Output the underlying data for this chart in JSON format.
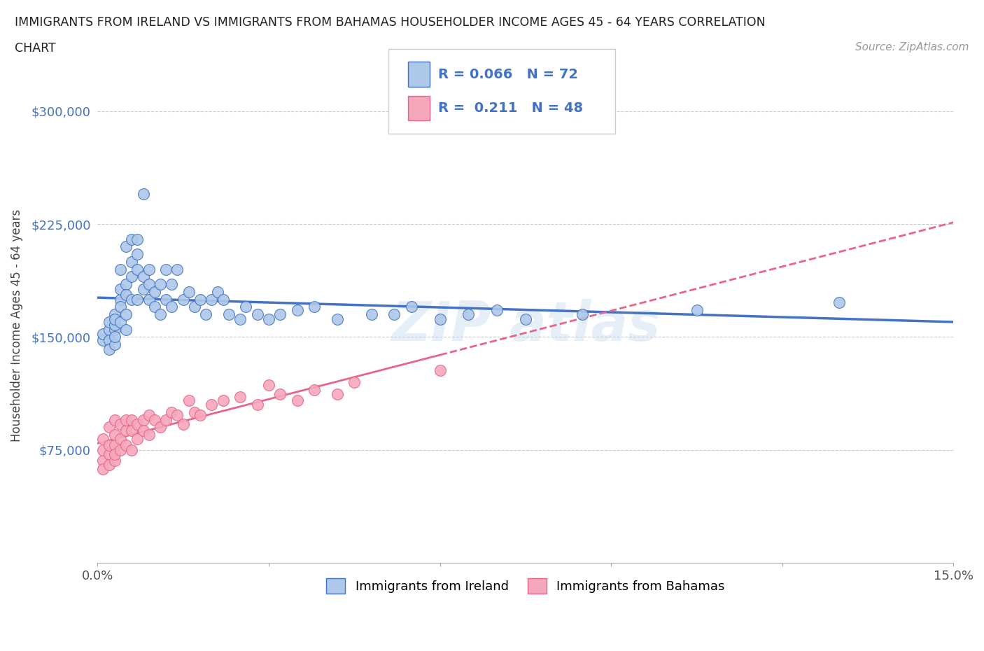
{
  "title_line1": "IMMIGRANTS FROM IRELAND VS IMMIGRANTS FROM BAHAMAS HOUSEHOLDER INCOME AGES 45 - 64 YEARS CORRELATION",
  "title_line2": "CHART",
  "source_text": "Source: ZipAtlas.com",
  "ylabel": "Householder Income Ages 45 - 64 years",
  "xlim": [
    0.0,
    0.15
  ],
  "ylim": [
    0,
    315000
  ],
  "yticks": [
    75000,
    150000,
    225000,
    300000
  ],
  "ytick_labels": [
    "$75,000",
    "$150,000",
    "$225,000",
    "$300,000"
  ],
  "xticks": [
    0.0,
    0.03,
    0.06,
    0.09,
    0.12,
    0.15
  ],
  "xtick_labels": [
    "0.0%",
    "",
    "",
    "",
    "",
    "15.0%"
  ],
  "ireland_R": 0.066,
  "ireland_N": 72,
  "bahamas_R": 0.211,
  "bahamas_N": 48,
  "ireland_color": "#adc8e8",
  "bahamas_color": "#f5a8bc",
  "ireland_line_color": "#4472c4",
  "bahamas_line_color": "#e8648a",
  "background_color": "#ffffff",
  "ireland_x": [
    0.001,
    0.001,
    0.002,
    0.002,
    0.002,
    0.002,
    0.003,
    0.003,
    0.003,
    0.003,
    0.003,
    0.003,
    0.004,
    0.004,
    0.004,
    0.004,
    0.004,
    0.005,
    0.005,
    0.005,
    0.005,
    0.005,
    0.006,
    0.006,
    0.006,
    0.006,
    0.007,
    0.007,
    0.007,
    0.007,
    0.008,
    0.008,
    0.008,
    0.009,
    0.009,
    0.009,
    0.01,
    0.01,
    0.011,
    0.011,
    0.012,
    0.012,
    0.013,
    0.013,
    0.014,
    0.015,
    0.016,
    0.017,
    0.018,
    0.019,
    0.02,
    0.021,
    0.022,
    0.023,
    0.025,
    0.026,
    0.028,
    0.03,
    0.032,
    0.035,
    0.038,
    0.042,
    0.048,
    0.052,
    0.055,
    0.06,
    0.065,
    0.07,
    0.075,
    0.085,
    0.105,
    0.13
  ],
  "ireland_y": [
    148000,
    152000,
    155000,
    160000,
    148000,
    142000,
    165000,
    155000,
    145000,
    158000,
    150000,
    162000,
    175000,
    170000,
    182000,
    195000,
    160000,
    185000,
    178000,
    165000,
    210000,
    155000,
    200000,
    190000,
    175000,
    215000,
    205000,
    195000,
    175000,
    215000,
    245000,
    182000,
    190000,
    175000,
    195000,
    185000,
    170000,
    180000,
    185000,
    165000,
    195000,
    175000,
    185000,
    170000,
    195000,
    175000,
    180000,
    170000,
    175000,
    165000,
    175000,
    180000,
    175000,
    165000,
    162000,
    170000,
    165000,
    162000,
    165000,
    168000,
    170000,
    162000,
    165000,
    165000,
    170000,
    162000,
    165000,
    168000,
    162000,
    165000,
    168000,
    173000
  ],
  "bahamas_x": [
    0.001,
    0.001,
    0.001,
    0.001,
    0.002,
    0.002,
    0.002,
    0.002,
    0.003,
    0.003,
    0.003,
    0.003,
    0.003,
    0.004,
    0.004,
    0.004,
    0.005,
    0.005,
    0.005,
    0.006,
    0.006,
    0.006,
    0.007,
    0.007,
    0.008,
    0.008,
    0.009,
    0.009,
    0.01,
    0.011,
    0.012,
    0.013,
    0.014,
    0.015,
    0.016,
    0.017,
    0.018,
    0.02,
    0.022,
    0.025,
    0.028,
    0.03,
    0.032,
    0.035,
    0.038,
    0.042,
    0.045,
    0.06
  ],
  "bahamas_y": [
    82000,
    68000,
    75000,
    62000,
    90000,
    72000,
    78000,
    65000,
    95000,
    78000,
    85000,
    68000,
    72000,
    92000,
    82000,
    75000,
    88000,
    95000,
    78000,
    95000,
    88000,
    75000,
    92000,
    82000,
    95000,
    88000,
    98000,
    85000,
    95000,
    90000,
    95000,
    100000,
    98000,
    92000,
    108000,
    100000,
    98000,
    105000,
    108000,
    110000,
    105000,
    118000,
    112000,
    108000,
    115000,
    112000,
    120000,
    128000
  ]
}
